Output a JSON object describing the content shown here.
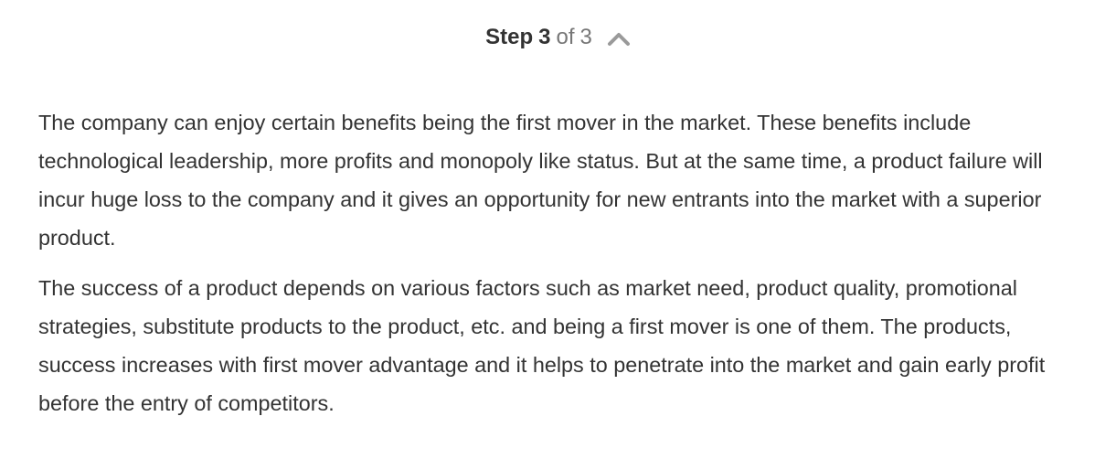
{
  "step": {
    "label": "Step",
    "current": "3",
    "of": "of",
    "total": "3",
    "toggle_icon": "chevron-up-icon"
  },
  "content": {
    "paragraphs": [
      "The company can enjoy certain benefits being the first mover in the market. These benefits include technological leadership, more profits and monopoly like status. But at the same time, a product failure will incur huge loss to the company and it gives an opportunity for new entrants into the market with a superior product.",
      "The success of a product depends on various factors such as market need, product quality, promotional strategies, substitute products to the product, etc. and being a first mover is one of them. The products, success increases with first mover advantage and it helps to penetrate into the market and gain early profit before the entry of competitors."
    ]
  }
}
